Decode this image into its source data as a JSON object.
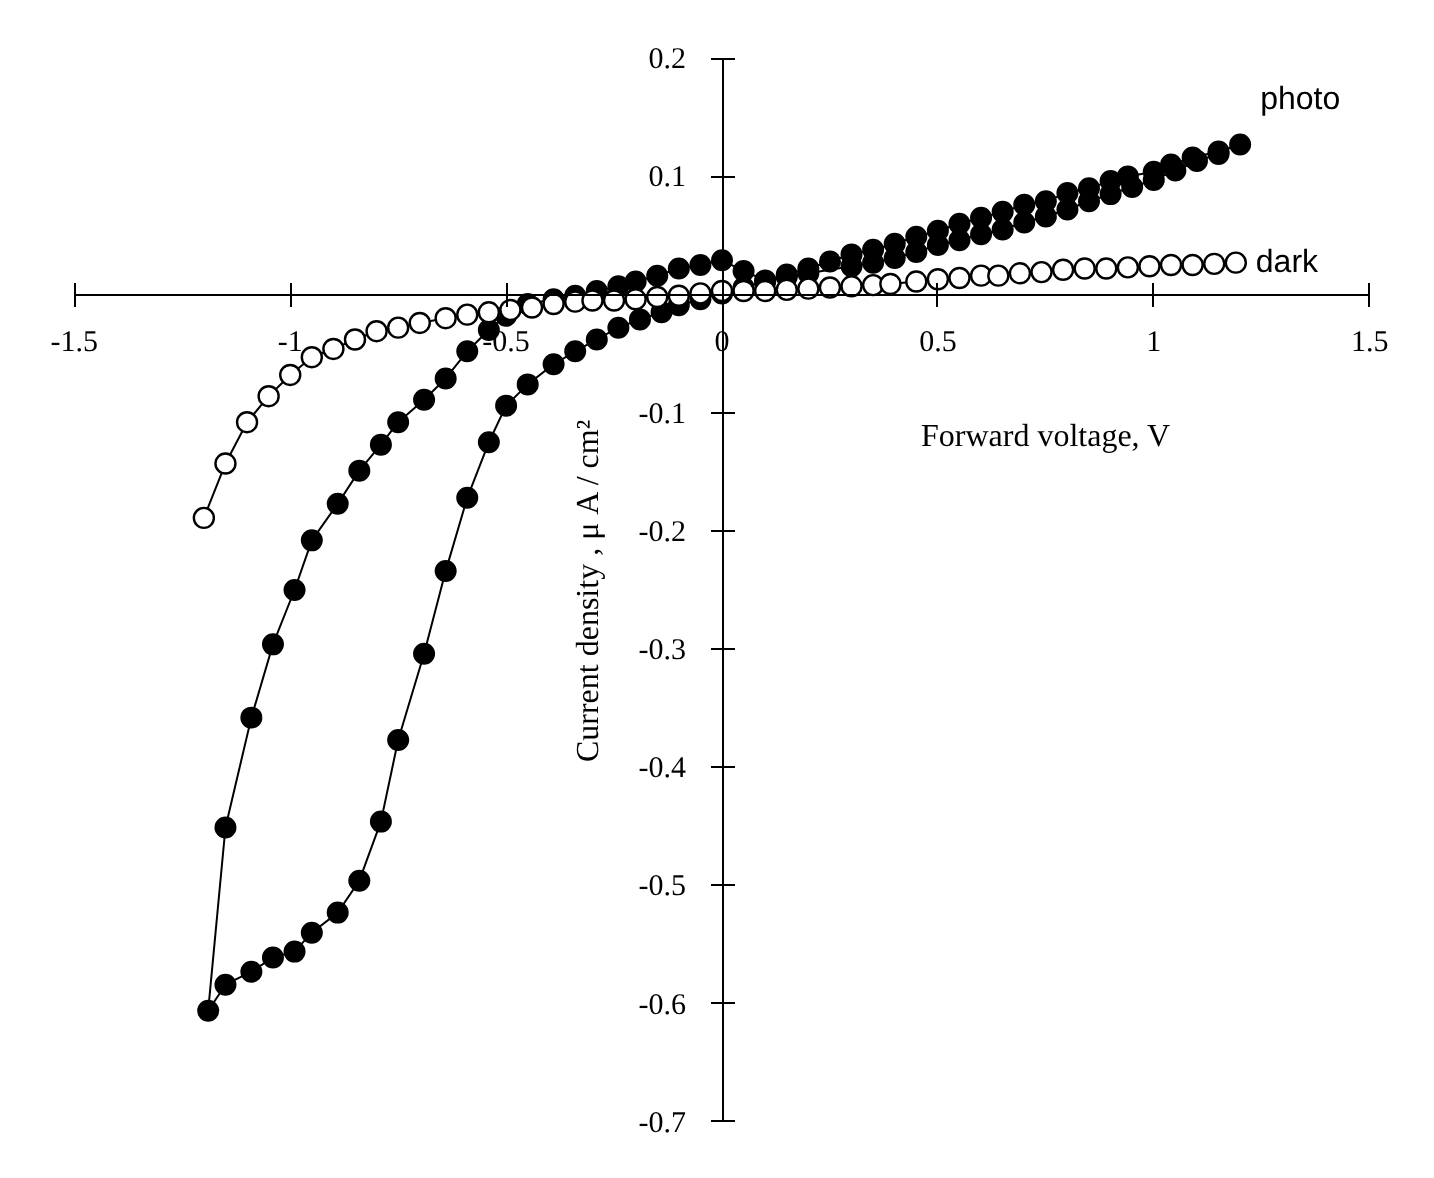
{
  "chart_data": {
    "type": "line",
    "xlabel": "Forward voltage, V",
    "ylabel": "Current density , μ A / cm²",
    "xlim": [
      -1.5,
      1.5
    ],
    "ylim": [
      -0.7,
      0.2
    ],
    "xticks": [
      -1.5,
      -1,
      -0.5,
      0,
      0.5,
      1,
      1.5
    ],
    "yticks": [
      0.2,
      0.1,
      -0.1,
      -0.2,
      -0.3,
      -0.4,
      -0.5,
      -0.6,
      -0.7
    ],
    "grid": false,
    "line_style": "solid",
    "series": [
      {
        "name": "photo",
        "color": "#000000",
        "marker": "circle",
        "x": [
          1.2,
          1.15,
          1.09,
          1.04,
          1.0,
          0.94,
          0.9,
          0.85,
          0.8,
          0.75,
          0.7,
          0.65,
          0.6,
          0.55,
          0.5,
          0.45,
          0.4,
          0.35,
          0.3,
          0.25,
          0.2,
          0.15,
          0.1,
          0.05,
          0.0,
          -0.05,
          -0.1,
          -0.15,
          -0.2,
          -0.24,
          -0.29,
          -0.34,
          -0.39,
          -0.45,
          -0.5,
          -0.54,
          -0.59,
          -0.64,
          -0.69,
          -0.75,
          -0.79,
          -0.84,
          -0.89,
          -0.95,
          -0.99,
          -1.04,
          -1.09,
          -1.15,
          -1.19,
          -1.15,
          -1.09,
          -1.04,
          -0.99,
          -0.95,
          -0.89,
          -0.84,
          -0.79,
          -0.75,
          -0.69,
          -0.64,
          -0.59,
          -0.54,
          -0.5,
          -0.45,
          -0.39,
          -0.34,
          -0.29,
          -0.24,
          -0.19,
          -0.14,
          -0.1,
          -0.05,
          0.0,
          0.05,
          0.1,
          0.15,
          0.2,
          0.3,
          0.35,
          0.4,
          0.45,
          0.5,
          0.55,
          0.6,
          0.65,
          0.7,
          0.75,
          0.8,
          0.85,
          0.9,
          0.95,
          1.0,
          1.05,
          1.1,
          1.15
        ],
        "values": [
          0.127,
          0.121,
          0.116,
          0.11,
          0.104,
          0.1,
          0.096,
          0.09,
          0.086,
          0.079,
          0.076,
          0.07,
          0.065,
          0.06,
          0.054,
          0.049,
          0.043,
          0.038,
          0.034,
          0.028,
          0.022,
          0.017,
          0.012,
          0.02,
          0.029,
          0.025,
          0.022,
          0.016,
          0.011,
          0.007,
          0.003,
          -0.001,
          -0.004,
          -0.008,
          -0.018,
          -0.03,
          -0.048,
          -0.071,
          -0.089,
          -0.108,
          -0.127,
          -0.149,
          -0.177,
          -0.208,
          -0.25,
          -0.296,
          -0.358,
          -0.451,
          -0.606,
          -0.584,
          -0.573,
          -0.561,
          -0.556,
          -0.54,
          -0.523,
          -0.496,
          -0.446,
          -0.377,
          -0.304,
          -0.234,
          -0.172,
          -0.125,
          -0.094,
          -0.076,
          -0.059,
          -0.048,
          -0.038,
          -0.028,
          -0.021,
          -0.015,
          -0.009,
          -0.004,
          0.001,
          0.006,
          0.011,
          0.015,
          0.018,
          0.024,
          0.027,
          0.031,
          0.036,
          0.042,
          0.046,
          0.051,
          0.055,
          0.061,
          0.066,
          0.072,
          0.079,
          0.085,
          0.091,
          0.097,
          0.105,
          0.113,
          0.119
        ]
      },
      {
        "name": "dark",
        "color": "#000000",
        "marker": "circle_open",
        "x": [
          -1.2,
          -1.15,
          -1.1,
          -1.05,
          -1.0,
          -0.95,
          -0.9,
          -0.85,
          -0.8,
          -0.75,
          -0.7,
          -0.64,
          -0.59,
          -0.54,
          -0.49,
          -0.44,
          -0.39,
          -0.34,
          -0.3,
          -0.25,
          -0.2,
          -0.15,
          -0.1,
          -0.05,
          0.0,
          0.05,
          0.1,
          0.15,
          0.2,
          0.25,
          0.3,
          0.35,
          0.39,
          0.45,
          0.5,
          0.55,
          0.6,
          0.64,
          0.69,
          0.74,
          0.79,
          0.84,
          0.89,
          0.94,
          0.99,
          1.04,
          1.09,
          1.14,
          1.19
        ],
        "values": [
          -0.189,
          -0.143,
          -0.108,
          -0.086,
          -0.068,
          -0.053,
          -0.046,
          -0.038,
          -0.031,
          -0.028,
          -0.024,
          -0.02,
          -0.017,
          -0.015,
          -0.013,
          -0.011,
          -0.008,
          -0.006,
          -0.005,
          -0.005,
          -0.004,
          -0.002,
          -0.001,
          0.001,
          0.003,
          0.003,
          0.003,
          0.004,
          0.005,
          0.006,
          0.007,
          0.008,
          0.009,
          0.011,
          0.013,
          0.014,
          0.016,
          0.016,
          0.018,
          0.019,
          0.021,
          0.022,
          0.022,
          0.023,
          0.024,
          0.025,
          0.025,
          0.026,
          0.027
        ]
      }
    ]
  }
}
